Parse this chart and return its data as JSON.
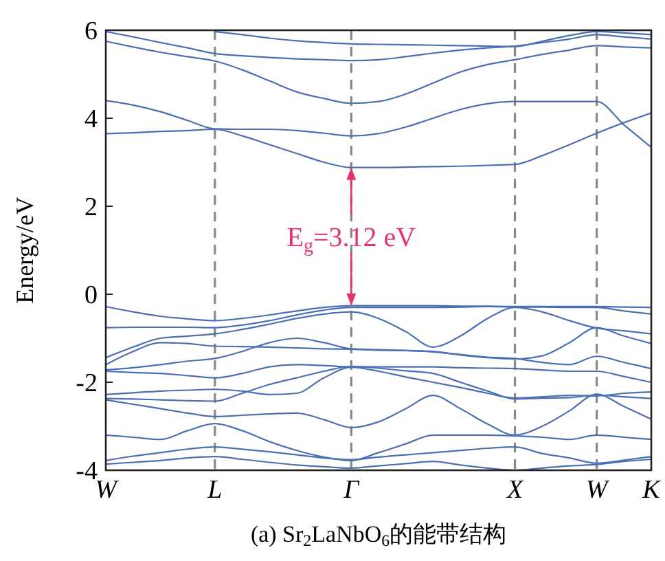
{
  "chart_data": {
    "type": "line",
    "title": "(a) Sr$_{2}$LaNbO$_{6}$的能带结构",
    "ylabel": "Energy/eV",
    "categories": [
      "W",
      null,
      null,
      null,
      "L",
      null,
      null,
      null,
      null,
      "Γ",
      null,
      null,
      null,
      null,
      null,
      "X",
      null,
      null,
      "W",
      null,
      "K"
    ],
    "ylim": [
      -4,
      6
    ],
    "yticks": [
      -4,
      -2,
      0,
      2,
      4,
      6
    ],
    "annotations": [
      "E$_{g}$=3.12 eV"
    ],
    "grid": "x",
    "line_style": "solid",
    "series": [
      {
        "color": "#4a6fb5",
        "values": [
          3.65,
          3.67,
          3.7,
          3.72,
          3.75,
          3.6,
          3.4,
          3.2,
          3.0,
          2.88,
          2.88,
          2.89,
          2.9,
          2.91,
          2.93,
          2.95,
          3.15,
          3.4,
          3.66,
          3.9,
          4.12
        ]
      },
      {
        "color": "#4a6fb5",
        "values": [
          4.4,
          4.3,
          4.15,
          3.95,
          3.76,
          3.75,
          3.75,
          3.72,
          3.66,
          3.6,
          3.65,
          3.8,
          4.0,
          4.2,
          4.33,
          4.38,
          4.38,
          4.38,
          4.38,
          3.85,
          3.34
        ]
      },
      {
        "color": "#4a6fb5",
        "values": [
          5.75,
          5.62,
          5.5,
          5.4,
          5.3,
          5.1,
          4.85,
          4.6,
          4.45,
          4.34,
          4.38,
          4.55,
          4.8,
          5.05,
          5.22,
          5.33,
          5.45,
          5.55,
          5.65,
          5.62,
          5.6
        ]
      },
      {
        "color": "#4a6fb5",
        "values": [
          5.97,
          5.85,
          5.72,
          5.6,
          5.47,
          5.42,
          5.38,
          5.35,
          5.33,
          5.31,
          5.33,
          5.4,
          5.48,
          5.55,
          5.6,
          5.64,
          5.72,
          5.8,
          5.9,
          5.85,
          5.8
        ]
      },
      {
        "color": "#4a6fb5",
        "values": [
          null,
          null,
          null,
          null,
          5.97,
          5.9,
          5.82,
          5.76,
          5.72,
          5.69,
          5.68,
          5.67,
          5.66,
          5.65,
          5.64,
          5.63,
          5.75,
          5.88,
          5.97,
          5.94,
          5.9
        ]
      },
      {
        "color": "#4a6fb5",
        "values": [
          -0.28,
          -0.4,
          -0.5,
          -0.56,
          -0.6,
          -0.55,
          -0.47,
          -0.38,
          -0.3,
          -0.26,
          -0.26,
          -0.26,
          -0.26,
          -0.27,
          -0.27,
          -0.28,
          -0.28,
          -0.28,
          -0.28,
          -0.29,
          -0.3
        ]
      },
      {
        "color": "#4a6fb5",
        "values": [
          -0.76,
          -0.75,
          -0.75,
          -0.75,
          -0.76,
          -0.7,
          -0.6,
          -0.47,
          -0.36,
          -0.3,
          -0.3,
          -0.3,
          -0.3,
          -0.29,
          -0.28,
          -0.29,
          -0.29,
          -0.3,
          -0.3,
          -0.38,
          -0.45
        ]
      },
      {
        "color": "#4a6fb5",
        "values": [
          -1.44,
          -1.2,
          -1.0,
          -0.95,
          -0.9,
          -0.8,
          -0.68,
          -0.55,
          -0.45,
          -0.4,
          -0.55,
          -0.85,
          -1.2,
          -0.95,
          -0.55,
          -0.3,
          -0.4,
          -0.6,
          -0.77,
          -0.83,
          -0.9
        ]
      },
      {
        "color": "#4a6fb5",
        "values": [
          -1.6,
          -1.3,
          -1.1,
          -1.12,
          -1.18,
          -1.19,
          -1.2,
          -1.22,
          -1.24,
          -1.25,
          -1.27,
          -1.28,
          -1.3,
          -1.38,
          -1.44,
          -1.47,
          -1.4,
          -1.1,
          -0.76,
          -0.95,
          -1.12
        ]
      },
      {
        "color": "#4a6fb5",
        "values": [
          -1.72,
          -1.67,
          -1.6,
          -1.52,
          -1.46,
          -1.3,
          -1.1,
          -1.0,
          -1.1,
          -1.24,
          -1.26,
          -1.28,
          -1.31,
          -1.37,
          -1.43,
          -1.46,
          -1.55,
          -1.6,
          -1.41,
          -1.55,
          -1.69
        ]
      },
      {
        "color": "#4a6fb5",
        "values": [
          -1.75,
          -1.78,
          -1.8,
          -1.85,
          -1.9,
          -1.8,
          -1.65,
          -1.6,
          -1.62,
          -1.65,
          -1.65,
          -1.65,
          -1.65,
          -1.67,
          -1.68,
          -1.69,
          -1.72,
          -1.75,
          -1.75,
          -1.87,
          -2.0
        ]
      },
      {
        "color": "#4a6fb5",
        "values": [
          -2.28,
          -2.24,
          -2.2,
          -2.18,
          -2.16,
          -2.2,
          -2.28,
          -2.25,
          -1.9,
          -1.66,
          -1.75,
          -1.88,
          -2.0,
          -2.12,
          -2.25,
          -2.36,
          -2.33,
          -2.3,
          -2.31,
          -2.25,
          -2.22
        ]
      },
      {
        "color": "#4a6fb5",
        "values": [
          -2.37,
          -2.38,
          -2.4,
          -2.42,
          -2.43,
          -2.25,
          -2.05,
          -1.9,
          -1.75,
          -1.64,
          -1.68,
          -1.74,
          -1.8,
          -2.0,
          -2.2,
          -2.38,
          -2.36,
          -2.35,
          -2.29,
          -2.33,
          -2.37
        ]
      },
      {
        "color": "#4a6fb5",
        "values": [
          -2.4,
          -2.5,
          -2.6,
          -2.7,
          -2.78,
          -2.75,
          -2.72,
          -2.7,
          -2.85,
          -3.03,
          -2.9,
          -2.6,
          -2.3,
          -2.6,
          -2.95,
          -3.2,
          -3.0,
          -2.65,
          -2.27,
          -2.55,
          -2.84
        ]
      },
      {
        "color": "#4a6fb5",
        "values": [
          -3.2,
          -3.25,
          -3.3,
          -3.1,
          -2.94,
          -3.1,
          -3.35,
          -3.55,
          -3.7,
          -3.78,
          -3.6,
          -3.4,
          -3.2,
          -3.2,
          -3.2,
          -3.22,
          -3.25,
          -3.3,
          -3.2,
          -3.25,
          -3.3
        ]
      },
      {
        "color": "#4a6fb5",
        "values": [
          -3.78,
          -3.68,
          -3.6,
          -3.52,
          -3.47,
          -3.52,
          -3.58,
          -3.65,
          -3.72,
          -3.76,
          -3.7,
          -3.65,
          -3.6,
          -3.55,
          -3.5,
          -3.47,
          -3.62,
          -3.72,
          -3.84,
          -3.77,
          -3.69
        ]
      },
      {
        "color": "#4a6fb5",
        "values": [
          -3.86,
          -3.82,
          -3.78,
          -3.72,
          -3.69,
          -3.75,
          -3.82,
          -3.88,
          -3.92,
          -3.95,
          -3.9,
          -3.85,
          -3.8,
          -3.88,
          -3.95,
          -4.0,
          -3.95,
          -3.9,
          -3.87,
          -3.8,
          -3.75
        ]
      }
    ]
  }
}
